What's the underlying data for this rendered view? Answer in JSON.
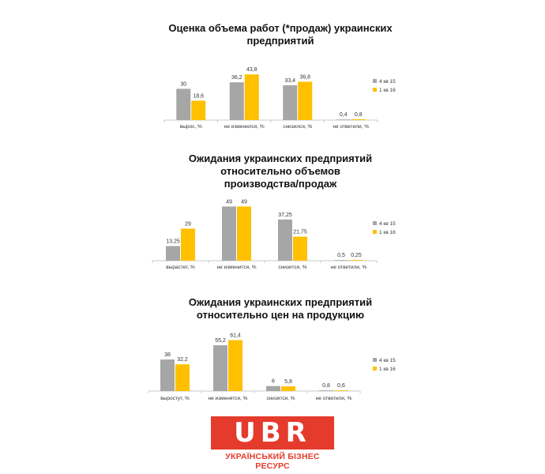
{
  "colors": {
    "series_a": "#a6a6a6",
    "series_b": "#ffc000",
    "logo_red": "#e53b2c"
  },
  "chart_data": [
    {
      "type": "bar",
      "title_lines": [
        "Оценка объема работ (*продаж) украинских",
        "предприятий"
      ],
      "categories": [
        "выроc, %",
        "не изменился, %",
        "снизился, %",
        "не ответили, %"
      ],
      "series": [
        {
          "name": "4 кв 15",
          "values": [
            30,
            36.2,
            33.4,
            0.4
          ],
          "labels": [
            "30",
            "36,2",
            "33,4",
            "0,4"
          ]
        },
        {
          "name": "1 кв 16",
          "values": [
            18.6,
            43.8,
            36.8,
            0.8
          ],
          "labels": [
            "18,6",
            "43,8",
            "36,8",
            "0,8"
          ]
        }
      ],
      "legend": "right",
      "grid": false
    },
    {
      "type": "bar",
      "title_lines": [
        "Ожидания украинских предприятий",
        "относительно объемов",
        "производства/продаж"
      ],
      "categories": [
        "вырастет, %",
        "не изменится, %",
        "снизится, %",
        "не ответили, %"
      ],
      "series": [
        {
          "name": "4 кв 15",
          "values": [
            13.25,
            49,
            37.25,
            0.5
          ],
          "labels": [
            "13,25",
            "49",
            "37,25",
            "0,5"
          ]
        },
        {
          "name": "1 кв 16",
          "values": [
            29,
            49,
            21.75,
            0.25
          ],
          "labels": [
            "29",
            "49",
            "21,75",
            "0,25"
          ]
        }
      ],
      "legend": "right",
      "grid": false
    },
    {
      "type": "bar",
      "title_lines": [
        "Ожидания украинских предприятий",
        "относительно цен на продукцию"
      ],
      "categories": [
        "выростут, %",
        "не изменятся, %",
        "снизятся, %",
        "не ответили, %"
      ],
      "series": [
        {
          "name": "4 кв 15",
          "values": [
            38,
            55.2,
            6,
            0.8
          ],
          "labels": [
            "38",
            "55,2",
            "6",
            "0,8"
          ]
        },
        {
          "name": "1 кв 16",
          "values": [
            32.2,
            61.4,
            5.8,
            0.6
          ],
          "labels": [
            "32,2",
            "61,4",
            "5,8",
            "0,6"
          ]
        }
      ],
      "legend": "right",
      "grid": false
    }
  ],
  "logo": {
    "mark": "UBR",
    "caption": "УКРАЇНСЬКИЙ БІЗНЕС РЕСУРС"
  }
}
